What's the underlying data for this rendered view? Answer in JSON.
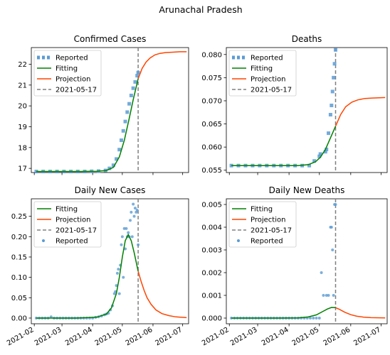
{
  "figure_title": "Arunachal Pradesh",
  "x_ticks": [
    "2021-02",
    "2021-03",
    "2021-04",
    "2021-05",
    "2021-06",
    "2021-07"
  ],
  "colors": {
    "reported": "#5b9bd5",
    "fitting": "#008000",
    "projection": "#ff4500",
    "vline": "#808080"
  },
  "chart_data": [
    {
      "type": "line",
      "title": "Confirmed Cases",
      "legend": [
        "Reported",
        "Fitting",
        "Projection",
        "2021-05-17"
      ],
      "legend_position": "upper-left",
      "ylim": [
        16.8,
        22.8
      ],
      "yticks": [
        "17",
        "18",
        "19",
        "20",
        "21",
        "22"
      ],
      "vline_date": "2021-05-17",
      "series": [
        {
          "name": "Reported",
          "kind": "square-markers",
          "x": [
            "2021-02-03",
            "2021-02-10",
            "2021-02-17",
            "2021-02-24",
            "2021-03-03",
            "2021-03-10",
            "2021-03-17",
            "2021-03-24",
            "2021-03-31",
            "2021-04-07",
            "2021-04-14",
            "2021-04-18",
            "2021-04-22",
            "2021-04-25",
            "2021-04-28",
            "2021-04-30",
            "2021-05-02",
            "2021-05-04",
            "2021-05-06",
            "2021-05-08",
            "2021-05-10",
            "2021-05-12",
            "2021-05-14",
            "2021-05-16",
            "2021-05-17"
          ],
          "y": [
            16.85,
            16.85,
            16.85,
            16.85,
            16.85,
            16.85,
            16.85,
            16.85,
            16.86,
            16.87,
            16.9,
            17.0,
            17.15,
            17.45,
            17.9,
            18.35,
            18.8,
            19.25,
            19.7,
            20.1,
            20.5,
            20.85,
            21.15,
            21.45,
            21.6
          ]
        },
        {
          "name": "Fitting",
          "kind": "line",
          "x": [
            "2021-02-03",
            "2021-03-01",
            "2021-03-20",
            "2021-04-05",
            "2021-04-15",
            "2021-04-22",
            "2021-04-28",
            "2021-05-03",
            "2021-05-08",
            "2021-05-12",
            "2021-05-17"
          ],
          "y": [
            16.85,
            16.85,
            16.85,
            16.86,
            16.9,
            17.05,
            17.55,
            18.35,
            19.4,
            20.3,
            21.3
          ]
        },
        {
          "name": "Projection",
          "kind": "line",
          "x": [
            "2021-05-17",
            "2021-05-21",
            "2021-05-25",
            "2021-05-29",
            "2021-06-03",
            "2021-06-08",
            "2021-06-14",
            "2021-06-21",
            "2021-06-28",
            "2021-07-05"
          ],
          "y": [
            21.3,
            21.8,
            22.1,
            22.3,
            22.45,
            22.52,
            22.56,
            22.58,
            22.6,
            22.6
          ]
        }
      ]
    },
    {
      "type": "line",
      "title": "Deaths",
      "legend": [
        "Reported",
        "Fitting",
        "Projection",
        "2021-05-17"
      ],
      "legend_position": "upper-left",
      "ylim": [
        0.0545,
        0.0815
      ],
      "yticks": [
        "0.055",
        "0.060",
        "0.065",
        "0.070",
        "0.075",
        "0.080"
      ],
      "vline_date": "2021-05-17",
      "series": [
        {
          "name": "Reported",
          "kind": "square-markers",
          "x": [
            "2021-02-03",
            "2021-02-10",
            "2021-02-17",
            "2021-02-24",
            "2021-03-03",
            "2021-03-10",
            "2021-03-17",
            "2021-03-24",
            "2021-03-31",
            "2021-04-07",
            "2021-04-14",
            "2021-04-21",
            "2021-04-26",
            "2021-05-01",
            "2021-05-02",
            "2021-05-07",
            "2021-05-08",
            "2021-05-10",
            "2021-05-12",
            "2021-05-13",
            "2021-05-14",
            "2021-05-15",
            "2021-05-16",
            "2021-05-17"
          ],
          "y": [
            0.056,
            0.056,
            0.056,
            0.056,
            0.056,
            0.056,
            0.056,
            0.056,
            0.056,
            0.056,
            0.056,
            0.056,
            0.057,
            0.058,
            0.0585,
            0.059,
            0.0595,
            0.063,
            0.067,
            0.069,
            0.072,
            0.075,
            0.078,
            0.081
          ]
        },
        {
          "name": "Fitting",
          "kind": "line",
          "x": [
            "2021-02-03",
            "2021-03-15",
            "2021-04-10",
            "2021-04-20",
            "2021-04-27",
            "2021-05-02",
            "2021-05-07",
            "2021-05-12",
            "2021-05-17"
          ],
          "y": [
            0.056,
            0.056,
            0.056,
            0.0562,
            0.0568,
            0.0578,
            0.0595,
            0.062,
            0.0645
          ]
        },
        {
          "name": "Projection",
          "kind": "line",
          "x": [
            "2021-05-17",
            "2021-05-22",
            "2021-05-27",
            "2021-06-02",
            "2021-06-08",
            "2021-06-15",
            "2021-06-22",
            "2021-07-05"
          ],
          "y": [
            0.0645,
            0.067,
            0.0687,
            0.0697,
            0.0702,
            0.0705,
            0.0706,
            0.0707
          ]
        }
      ]
    },
    {
      "type": "scatter",
      "title": "Daily New Cases",
      "legend": [
        "Fitting",
        "Projection",
        "2021-05-17",
        "Reported"
      ],
      "legend_position": "upper-left",
      "ylim": [
        -0.014,
        0.293
      ],
      "yticks": [
        "0.00",
        "0.05",
        "0.10",
        "0.15",
        "0.20",
        "0.25"
      ],
      "vline_date": "2021-05-17",
      "series": [
        {
          "name": "Reported",
          "kind": "dot-markers",
          "x": [
            "2021-02-03",
            "2021-02-06",
            "2021-02-09",
            "2021-02-12",
            "2021-02-15",
            "2021-02-18",
            "2021-02-21",
            "2021-02-24",
            "2021-02-27",
            "2021-03-02",
            "2021-03-05",
            "2021-03-08",
            "2021-03-11",
            "2021-03-14",
            "2021-03-17",
            "2021-03-20",
            "2021-03-23",
            "2021-03-26",
            "2021-03-29",
            "2021-04-01",
            "2021-04-04",
            "2021-04-07",
            "2021-04-10",
            "2021-04-13",
            "2021-04-15",
            "2021-04-17",
            "2021-04-19",
            "2021-04-21",
            "2021-04-23",
            "2021-04-24",
            "2021-04-25",
            "2021-04-26",
            "2021-04-27",
            "2021-04-28",
            "2021-04-29",
            "2021-04-30",
            "2021-05-01",
            "2021-05-02",
            "2021-05-03",
            "2021-05-04",
            "2021-05-05",
            "2021-05-06",
            "2021-05-07",
            "2021-05-08",
            "2021-05-09",
            "2021-05-10",
            "2021-05-11",
            "2021-05-12",
            "2021-05-13",
            "2021-05-14",
            "2021-05-15",
            "2021-05-16",
            "2021-05-17"
          ],
          "y": [
            0,
            0,
            0,
            0,
            0,
            0.003,
            0,
            0,
            0,
            0,
            0,
            0,
            0,
            0,
            0,
            0,
            0,
            0,
            0,
            0,
            0.002,
            0.003,
            0.005,
            0.008,
            0.01,
            0.012,
            0.02,
            0.03,
            0.06,
            0.065,
            0.08,
            0.11,
            0.12,
            0.06,
            0.13,
            0.18,
            0.2,
            0.1,
            0.22,
            0.17,
            0.22,
            0.2,
            0.21,
            0.2,
            0.24,
            0.26,
            0.2,
            0.28,
            0.25,
            0.27,
            0.26,
            0.265,
            0.18
          ]
        },
        {
          "name": "Fitting",
          "kind": "line",
          "x": [
            "2021-02-03",
            "2021-03-15",
            "2021-04-05",
            "2021-04-15",
            "2021-04-20",
            "2021-04-25",
            "2021-04-28",
            "2021-05-01",
            "2021-05-04",
            "2021-05-07",
            "2021-05-10",
            "2021-05-13",
            "2021-05-17"
          ],
          "y": [
            0,
            0,
            0.002,
            0.01,
            0.025,
            0.06,
            0.1,
            0.15,
            0.19,
            0.205,
            0.19,
            0.16,
            0.115
          ]
        },
        {
          "name": "Projection",
          "kind": "line",
          "x": [
            "2021-05-17",
            "2021-05-20",
            "2021-05-23",
            "2021-05-26",
            "2021-05-30",
            "2021-06-04",
            "2021-06-10",
            "2021-06-17",
            "2021-06-24",
            "2021-07-05"
          ],
          "y": [
            0.115,
            0.09,
            0.068,
            0.05,
            0.034,
            0.02,
            0.011,
            0.006,
            0.003,
            0.001
          ]
        }
      ]
    },
    {
      "type": "scatter",
      "title": "Daily New Deaths",
      "legend": [
        "Fitting",
        "Projection",
        "2021-05-17",
        "Reported"
      ],
      "legend_position": "upper-left",
      "ylim": [
        -0.00025,
        0.00525
      ],
      "yticks": [
        "0.000",
        "0.001",
        "0.002",
        "0.003",
        "0.004",
        "0.005"
      ],
      "vline_date": "2021-05-17",
      "series": [
        {
          "name": "Reported",
          "kind": "dot-markers",
          "x": [
            "2021-02-03",
            "2021-02-06",
            "2021-02-09",
            "2021-02-12",
            "2021-02-15",
            "2021-02-18",
            "2021-02-21",
            "2021-02-24",
            "2021-02-27",
            "2021-03-02",
            "2021-03-05",
            "2021-03-08",
            "2021-03-11",
            "2021-03-14",
            "2021-03-17",
            "2021-03-20",
            "2021-03-23",
            "2021-03-26",
            "2021-03-29",
            "2021-04-01",
            "2021-04-04",
            "2021-04-07",
            "2021-04-10",
            "2021-04-13",
            "2021-04-16",
            "2021-04-19",
            "2021-04-22",
            "2021-04-25",
            "2021-04-28",
            "2021-05-01",
            "2021-05-03",
            "2021-05-05",
            "2021-05-08",
            "2021-05-10",
            "2021-05-12",
            "2021-05-13",
            "2021-05-14",
            "2021-05-15",
            "2021-05-16",
            "2021-05-17"
          ],
          "y": [
            0,
            0,
            0,
            0,
            0,
            0,
            0,
            0,
            0,
            0,
            0,
            0,
            0,
            0,
            0,
            0,
            0,
            0,
            0,
            0,
            0,
            0,
            0,
            0,
            0,
            0,
            0,
            0,
            0,
            0,
            0.002,
            0.001,
            0.001,
            0.001,
            0.004,
            0.004,
            0.003,
            0.001,
            0.005,
            0.005
          ]
        },
        {
          "name": "Fitting",
          "kind": "line",
          "x": [
            "2021-02-03",
            "2021-03-20",
            "2021-04-10",
            "2021-04-20",
            "2021-04-28",
            "2021-05-04",
            "2021-05-09",
            "2021-05-13",
            "2021-05-17"
          ],
          "y": [
            0,
            0,
            1e-05,
            5e-05,
            0.00014,
            0.00028,
            0.0004,
            0.00047,
            0.00046
          ]
        },
        {
          "name": "Projection",
          "kind": "line",
          "x": [
            "2021-05-17",
            "2021-05-21",
            "2021-05-26",
            "2021-06-01",
            "2021-06-07",
            "2021-06-14",
            "2021-06-21",
            "2021-07-05"
          ],
          "y": [
            0.00046,
            0.00038,
            0.00026,
            0.00015,
            8e-05,
            4e-05,
            2e-05,
            5e-06
          ]
        }
      ]
    }
  ]
}
